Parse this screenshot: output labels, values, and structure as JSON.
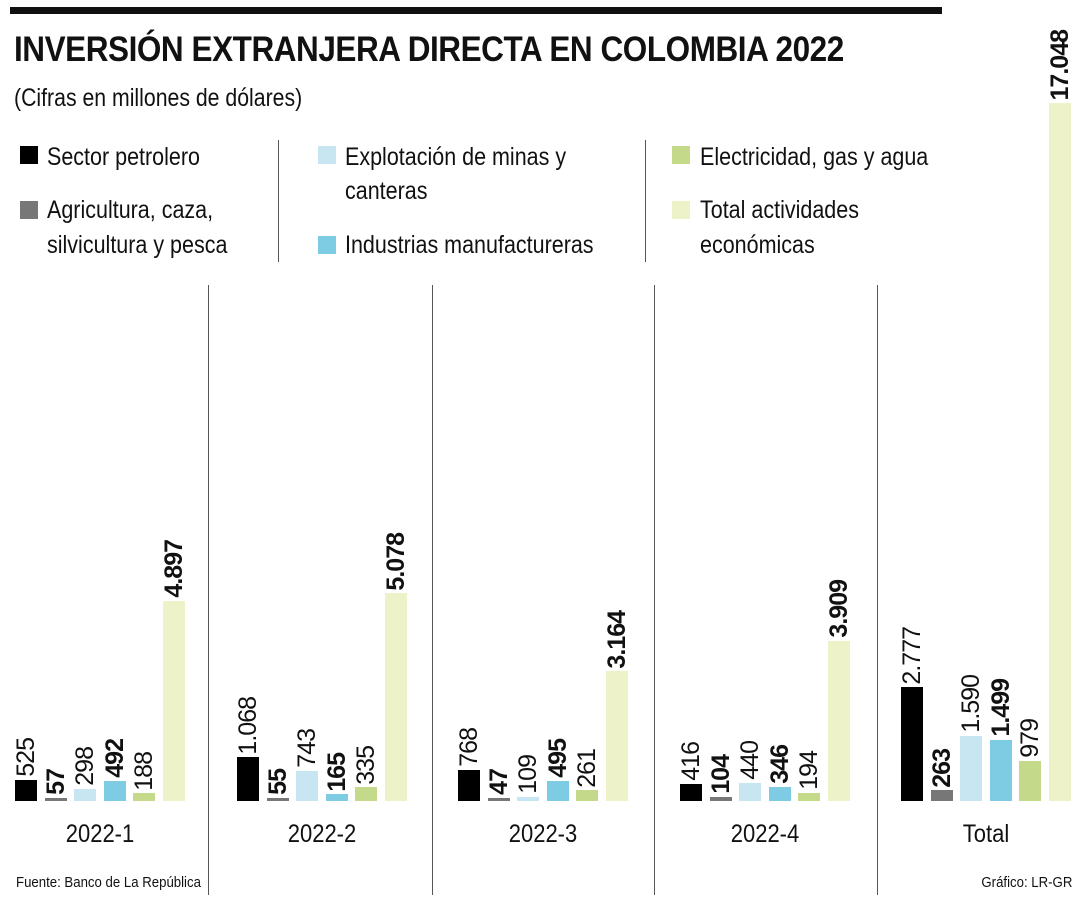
{
  "chart_data": {
    "type": "bar",
    "title": "INVERSIÓN EXTRANJERA DIRECTA EN COLOMBIA 2022",
    "subtitle": "(Cifras en millones de dólares)",
    "xlabel": "",
    "ylabel": "",
    "categories": [
      "2022-1",
      "2022-2",
      "2022-3",
      "2022-4",
      "Total"
    ],
    "series": [
      {
        "name": "Sector petrolero",
        "color": "#000000",
        "values": [
          525,
          1068,
          768,
          416,
          2777
        ],
        "labels": [
          "525",
          "1.068",
          "768",
          "416",
          "2.777"
        ],
        "bold": false
      },
      {
        "name": "Agricultura, caza, silvicultura y pesca",
        "color": "#777777",
        "values": [
          57,
          55,
          47,
          104,
          263
        ],
        "labels": [
          "57",
          "55",
          "47",
          "104",
          "263"
        ],
        "bold": true
      },
      {
        "name": "Explotación de minas y canteras",
        "color": "#c8e6f2",
        "values": [
          298,
          743,
          109,
          440,
          1590
        ],
        "labels": [
          "298",
          "743",
          "109",
          "440",
          "1.590"
        ],
        "bold": false
      },
      {
        "name": "Industrias manufactureras",
        "color": "#7ecbe4",
        "values": [
          492,
          165,
          495,
          346,
          1499
        ],
        "labels": [
          "492",
          "165",
          "495",
          "346",
          "1.499"
        ],
        "bold": true
      },
      {
        "name": "Electricidad, gas y agua",
        "color": "#c5d98a",
        "values": [
          188,
          335,
          261,
          194,
          979
        ],
        "labels": [
          "188",
          "335",
          "261",
          "194",
          "979"
        ],
        "bold": false
      },
      {
        "name": "Total actividades económicas",
        "color": "#eef2c8",
        "values": [
          4897,
          5078,
          3164,
          3909,
          17048
        ],
        "labels": [
          "4.897",
          "5.078",
          "3.164",
          "3.909",
          "17.048"
        ],
        "bold": true
      }
    ],
    "ylim": [
      0,
      17048
    ],
    "grid": false,
    "legend_position": "top"
  },
  "legend": {
    "sector_petrolero": "Sector petrolero",
    "agricultura_1": "Agricultura, caza,",
    "agricultura_2": "silvicultura y pesca",
    "minas_1": "Explotación de minas y",
    "minas_2": "canteras",
    "industrias": "Industrias manufactureras",
    "electricidad": "Electricidad, gas y agua",
    "total_1": "Total actividades",
    "total_2": "económicas"
  },
  "footer": {
    "source": "Fuente: Banco de La República",
    "credit": "Gráfico: LR-GR"
  }
}
